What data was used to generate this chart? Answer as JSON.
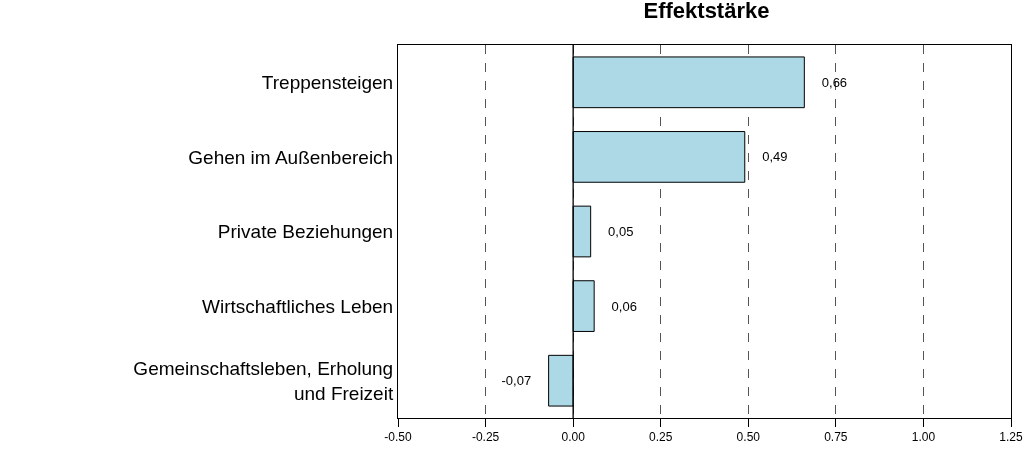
{
  "chart_data": {
    "type": "bar",
    "orientation": "horizontal",
    "title": "Effektstärke",
    "categories": [
      "Treppensteigen",
      "Gehen im Außenbereich",
      "Private Beziehungen",
      "Wirtschaftliches Leben",
      "Gemeinschaftsleben, Erholung\nund Freizeit"
    ],
    "values": [
      0.66,
      0.49,
      0.05,
      0.06,
      -0.07
    ],
    "value_labels": [
      "0,66",
      "0,49",
      "0,05",
      "0,06",
      "-0,07"
    ],
    "color": "#add8e6",
    "xlim": [
      -0.5,
      1.25
    ],
    "xticks": [
      {
        "value": -0.5,
        "label": "-0.50"
      },
      {
        "value": -0.25,
        "label": "-0.25"
      },
      {
        "value": 0,
        "label": "0.00"
      },
      {
        "value": 0.25,
        "label": "0.25"
      },
      {
        "value": 0.5,
        "label": "0.50"
      },
      {
        "value": 0.75,
        "label": "0.75"
      },
      {
        "value": 1,
        "label": "1.00"
      },
      {
        "value": 1.25,
        "label": "1.25"
      }
    ],
    "grid": "x",
    "ref_lines": [
      {
        "axis": "x",
        "value": 0,
        "color": "#000000",
        "line_style": "solid"
      }
    ]
  }
}
